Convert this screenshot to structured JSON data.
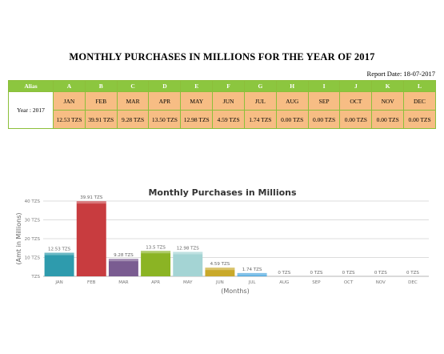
{
  "report": {
    "title": "MONTHLY PURCHASES IN MILLIONS FOR THE YEAR OF 2017",
    "date_label": "Report Date: 18-07-2017"
  },
  "table": {
    "alias_header": "Alias",
    "col_letters": [
      "A",
      "B",
      "C",
      "D",
      "E",
      "F",
      "G",
      "H",
      "I",
      "J",
      "K",
      "L"
    ],
    "row_label": "Year : 2017",
    "months": [
      "JAN",
      "FEB",
      "MAR",
      "APR",
      "MAY",
      "JUN",
      "JUL",
      "AUG",
      "SEP",
      "OCT",
      "NOV",
      "DEC"
    ],
    "values": [
      "12.53 TZS",
      "39.91 TZS",
      "9.28 TZS",
      "13.50 TZS",
      "12.98 TZS",
      "4.59 TZS",
      "1.74 TZS",
      "0.00 TZS",
      "0.00 TZS",
      "0.00 TZS",
      "0.00 TZS",
      "0.00 TZS"
    ]
  },
  "chart_data": {
    "type": "bar",
    "title": "Monthly Purchases in Millions",
    "xlabel": "(Months)",
    "ylabel": "(Amt in Millions)",
    "categories": [
      "JAN",
      "FEB",
      "MAR",
      "APR",
      "MAY",
      "JUN",
      "JUL",
      "AUG",
      "SEP",
      "OCT",
      "NOV",
      "DEC"
    ],
    "values": [
      12.53,
      39.91,
      9.28,
      13.5,
      12.98,
      4.59,
      1.74,
      0,
      0,
      0,
      0,
      0
    ],
    "data_labels": [
      "12.53 TZS",
      "39.91 TZS",
      "9.28 TZS",
      "13.5 TZS",
      "12.98 TZS",
      "4.59 TZS",
      "1.74 TZS",
      "0 TZS",
      "0 TZS",
      "0 TZS",
      "0 TZS",
      "0 TZS"
    ],
    "yticks": [
      0,
      10,
      20,
      30,
      40
    ],
    "ytick_labels": [
      "TZS",
      "10 TZS",
      "20 TZS",
      "30 TZS",
      "40 TZS"
    ],
    "ylim": [
      0,
      40
    ],
    "grid": true,
    "colors": [
      "#2e9bad",
      "#c83c3f",
      "#7a5c91",
      "#8bb424",
      "#a4d4d4",
      "#c9a92a",
      "#4fa8df",
      "#2e9bad",
      "#c83c3f",
      "#7a5c91",
      "#8bb424",
      "#a4d4d4"
    ]
  }
}
